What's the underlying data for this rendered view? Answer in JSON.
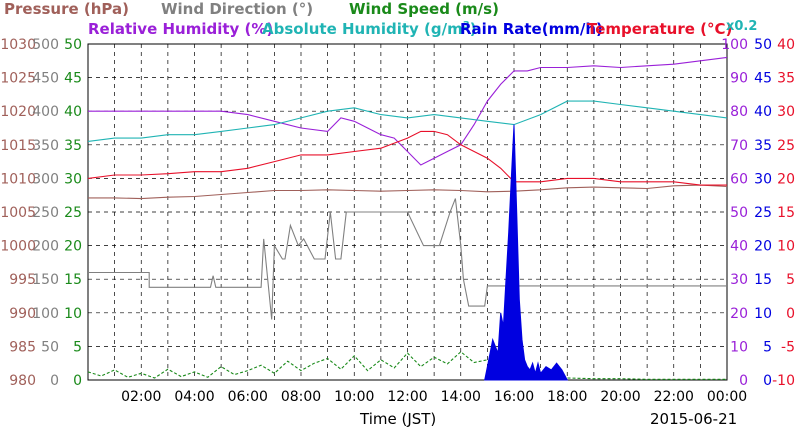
{
  "chart_data": {
    "type": "line",
    "date": "2015-06-21",
    "xlabel": "Time (JST)",
    "x_ticks": [
      "02:00",
      "04:00",
      "06:00",
      "08:00",
      "10:00",
      "12:00",
      "14:00",
      "16:00",
      "18:00",
      "20:00",
      "22:00",
      "00:00"
    ],
    "legend": {
      "pressure": {
        "label": "Pressure (hPa)",
        "color": "#a0605a"
      },
      "wind_direction": {
        "label": "Wind Direction (°)",
        "color": "#808080"
      },
      "wind_speed": {
        "label": "Wind Speed (m/s)",
        "color": "#1a8a1a"
      },
      "relative_humidity": {
        "label": "Relative Humidity (%)",
        "color": "#9a20d8"
      },
      "absolute_humidity": {
        "label": "Absolute Humidity (g/m",
        "sup": "3",
        "tail": ")",
        "color": "#20b4b4"
      },
      "rain_rate": {
        "label": "Rain Rate(mm/h)",
        "color": "#0000e0"
      },
      "temperature": {
        "label": "Temperature (°C)",
        "color": "#e8102a"
      },
      "abs_scale_note": "x0.2"
    },
    "axes": {
      "pressure": {
        "ticks": [
          "980",
          "985",
          "990",
          "995",
          "1000",
          "1005",
          "1010",
          "1015",
          "1020",
          "1025",
          "1030"
        ],
        "range": [
          980,
          1030
        ]
      },
      "wind_direction": {
        "ticks": [
          "0",
          "50",
          "100",
          "150",
          "200",
          "250",
          "300",
          "350",
          "400",
          "450",
          "500"
        ],
        "range": [
          0,
          500
        ]
      },
      "wind_speed": {
        "ticks": [
          "0",
          "5",
          "10",
          "15",
          "20",
          "25",
          "30",
          "35",
          "40",
          "45",
          "50"
        ],
        "range": [
          0,
          50
        ]
      },
      "humidity": {
        "ticks": [
          "0",
          "10",
          "20",
          "30",
          "40",
          "50",
          "60",
          "70",
          "80",
          "90",
          "100"
        ],
        "range": [
          0,
          100
        ]
      },
      "rain_rate": {
        "ticks": [
          "0",
          "5",
          "10",
          "15",
          "20",
          "25",
          "30",
          "35",
          "40",
          "45",
          "50"
        ],
        "range": [
          0,
          50
        ]
      },
      "temperature": {
        "ticks": [
          "-10",
          "-5",
          "0",
          "5",
          "10",
          "15",
          "20",
          "25",
          "30",
          "35",
          "40"
        ],
        "range": [
          -10,
          40
        ]
      }
    },
    "x_range_hours": [
      0,
      24
    ],
    "series": [
      {
        "name": "Pressure (hPa)",
        "key": "pressure",
        "x": [
          0,
          1,
          2,
          3,
          4,
          5,
          6,
          7,
          8,
          9,
          10,
          11,
          12,
          13,
          14,
          15,
          16,
          17,
          18,
          19,
          20,
          21,
          22,
          23,
          24
        ],
        "y": [
          1007.1,
          1007.1,
          1007,
          1007.2,
          1007.3,
          1007.6,
          1007.9,
          1008.2,
          1008.2,
          1008.3,
          1008.2,
          1008.1,
          1008.2,
          1008.3,
          1008.2,
          1008,
          1008.1,
          1008.3,
          1008.6,
          1008.7,
          1008.6,
          1008.5,
          1008.9,
          1009,
          1008.8
        ]
      },
      {
        "name": "Wind Direction (°)",
        "key": "wind_direction",
        "x": [
          0,
          2.3,
          2.3,
          4.6,
          4.7,
          4.8,
          6.5,
          6.6,
          6.9,
          7.0,
          7.3,
          7.4,
          7.6,
          7.9,
          8.1,
          8.5,
          8.9,
          9.1,
          9.3,
          9.5,
          9.7,
          9.8,
          12.0,
          12.6,
          13.2,
          13.6,
          13.8,
          14.0,
          14.1,
          14.3,
          14.6,
          14.9,
          15.0,
          15.3,
          15.6,
          16.0,
          18.0,
          20.0,
          22.0,
          24.0
        ],
        "y": [
          160,
          160,
          138,
          138,
          155,
          138,
          138,
          210,
          90,
          200,
          180,
          180,
          230,
          200,
          210,
          180,
          180,
          250,
          180,
          180,
          250,
          250,
          250,
          200,
          200,
          250,
          270,
          200,
          150,
          110,
          110,
          110,
          140,
          140,
          140,
          140,
          140,
          140,
          140,
          140
        ]
      },
      {
        "name": "Wind Speed (m/s)",
        "key": "wind_speed",
        "x": [
          0,
          0.5,
          1,
          1.5,
          2,
          2.5,
          3,
          3.5,
          4,
          4.5,
          5,
          5.5,
          6,
          6.5,
          7,
          7.5,
          8,
          8.5,
          9,
          9.5,
          10,
          10.5,
          11,
          11.5,
          12,
          12.5,
          13,
          13.5,
          14,
          14.5,
          15,
          15.5,
          16,
          16.5,
          17,
          17.5,
          18,
          19,
          20,
          21,
          22,
          23,
          24
        ],
        "y": [
          1.2,
          0.6,
          1.5,
          0.4,
          1.0,
          0.3,
          1.6,
          0.5,
          1.2,
          0.4,
          2.0,
          0.8,
          1.4,
          2.2,
          1.0,
          2.8,
          1.4,
          2.5,
          3.2,
          1.6,
          3.6,
          1.4,
          3.0,
          1.8,
          4.0,
          2.0,
          3.4,
          2.4,
          4.2,
          2.6,
          3.0,
          1.0,
          0.6,
          0.5,
          0.4,
          0.3,
          0.3,
          0.2,
          0.2,
          0.1,
          0.1,
          0.1,
          0.1
        ]
      },
      {
        "name": "Relative Humidity (%)",
        "key": "relative_humidity",
        "x": [
          0,
          1,
          2,
          3,
          4,
          5,
          6,
          7,
          8,
          9,
          9.5,
          10,
          10.5,
          11,
          11.5,
          12,
          12.5,
          13,
          13.5,
          14,
          14.5,
          15,
          15.5,
          16,
          16.5,
          17,
          18,
          19,
          20,
          21,
          22,
          23,
          24
        ],
        "y": [
          80,
          80,
          80,
          80,
          80,
          80,
          79,
          77,
          75,
          74,
          78,
          77,
          75,
          73,
          72,
          68,
          64,
          66,
          68,
          70,
          76,
          83,
          88,
          92,
          92,
          93,
          93,
          93.5,
          93,
          93.5,
          94,
          95,
          96
        ]
      },
      {
        "name": "Absolute Humidity (g/m³)",
        "key": "absolute_humidity",
        "x": [
          0,
          1,
          2,
          3,
          4,
          5,
          6,
          7,
          8,
          9,
          10,
          11,
          12,
          13,
          14,
          15,
          16,
          17,
          18,
          19,
          20,
          21,
          22,
          23,
          24
        ],
        "y": [
          71,
          72,
          72,
          73,
          73,
          74,
          75,
          76,
          78,
          80,
          81,
          79,
          78,
          79,
          78,
          77,
          76,
          79,
          83,
          83,
          82,
          81,
          80,
          79,
          78
        ]
      },
      {
        "name": "Temperature (°C)",
        "key": "temperature",
        "x": [
          0,
          1,
          2,
          3,
          4,
          5,
          6,
          7,
          8,
          9,
          10,
          11,
          12,
          12.5,
          13,
          13.5,
          14,
          14.5,
          15,
          15.5,
          16,
          17,
          18,
          19,
          20,
          21,
          22,
          23,
          24
        ],
        "y": [
          20,
          20.5,
          20.5,
          20.7,
          21,
          21,
          21.5,
          22.5,
          23.5,
          23.5,
          24,
          24.5,
          26,
          27,
          27,
          26.5,
          25,
          24,
          23,
          21.5,
          19.5,
          19.5,
          20,
          20,
          19.5,
          19.5,
          19.5,
          19,
          19
        ]
      },
      {
        "name": "Rain Rate(mm/h)",
        "key": "rain_rate",
        "x": [
          14.9,
          15.0,
          15.2,
          15.4,
          15.5,
          15.6,
          15.7,
          15.8,
          15.9,
          16.0,
          16.1,
          16.2,
          16.3,
          16.4,
          16.5,
          16.6,
          16.7,
          16.8,
          16.9,
          17.0,
          17.2,
          17.4,
          17.6,
          17.8,
          18.0
        ],
        "y": [
          0,
          2,
          6,
          4,
          10,
          8,
          15,
          22,
          30,
          38,
          25,
          12,
          6,
          3,
          2,
          1.5,
          2.5,
          1,
          2.5,
          1,
          2,
          1.5,
          2.5,
          1.5,
          0
        ]
      }
    ]
  }
}
